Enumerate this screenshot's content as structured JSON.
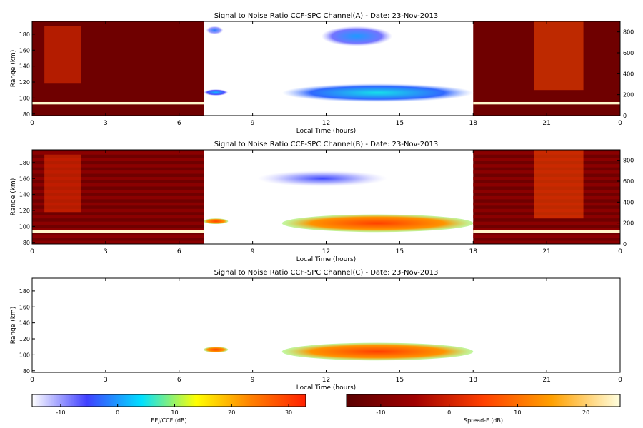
{
  "chart_data": [
    {
      "type": "heatmap",
      "title": "Signal to Noise Ratio CCF-SPC Channel(A) - Date: 23-Nov-2013",
      "xlabel": "Local Time (hours)",
      "ylabel": "Range (km)",
      "xlim": [
        0,
        24
      ],
      "ylim": [
        78,
        196
      ],
      "x_ticks": [
        "0",
        "3",
        "6",
        "9",
        "12",
        "15",
        "18",
        "21",
        "0"
      ],
      "y_ticks": [
        80,
        100,
        120,
        140,
        160,
        180
      ],
      "y2lim": [
        0,
        900
      ],
      "y2_ticks": [
        0,
        200,
        400,
        600,
        800
      ],
      "night_background": "spread-f",
      "features": [
        {
          "scale": "spread-f",
          "x": [
            0,
            7
          ],
          "y": [
            92,
            95
          ],
          "value": 24
        },
        {
          "scale": "spread-f",
          "x": [
            0.5,
            2
          ],
          "y": [
            118,
            190
          ],
          "value": 3
        },
        {
          "scale": "spread-f",
          "x": [
            18,
            24
          ],
          "y": [
            92,
            95
          ],
          "value": 24
        },
        {
          "scale": "spread-f",
          "x": [
            20.5,
            22.5
          ],
          "y": [
            110,
            196
          ],
          "value": 6
        },
        {
          "scale": "eej",
          "x": [
            7.1,
            7.8
          ],
          "y": [
            180,
            190
          ],
          "value": -2
        },
        {
          "scale": "eej",
          "x": [
            7.0,
            8.0
          ],
          "y": [
            103,
            111
          ],
          "value": 2
        },
        {
          "scale": "eej",
          "x": [
            11.8,
            14.7
          ],
          "y": [
            165,
            190
          ],
          "value": 0
        },
        {
          "scale": "eej",
          "x": [
            10.2,
            18
          ],
          "y": [
            95,
            118
          ],
          "value": 5
        }
      ]
    },
    {
      "type": "heatmap",
      "title": "Signal to Noise Ratio CCF-SPC Channel(B) - Date: 23-Nov-2013",
      "xlabel": "Local Time (hours)",
      "ylabel": "Range (km)",
      "xlim": [
        0,
        24
      ],
      "ylim": [
        78,
        196
      ],
      "x_ticks": [
        "0",
        "3",
        "6",
        "9",
        "12",
        "15",
        "18",
        "21",
        "0"
      ],
      "y_ticks": [
        80,
        100,
        120,
        140,
        160,
        180
      ],
      "y2lim": [
        0,
        900
      ],
      "y2_ticks": [
        0,
        200,
        400,
        600,
        800
      ],
      "night_background": "spread-f-striped",
      "features": [
        {
          "scale": "spread-f",
          "x": [
            0,
            7
          ],
          "y": [
            92,
            95
          ],
          "value": 24
        },
        {
          "scale": "spread-f",
          "x": [
            0.5,
            2
          ],
          "y": [
            118,
            190
          ],
          "value": 3
        },
        {
          "scale": "spread-f",
          "x": [
            18,
            24
          ],
          "y": [
            92,
            95
          ],
          "value": 24
        },
        {
          "scale": "spread-f",
          "x": [
            20.5,
            22.5
          ],
          "y": [
            110,
            196
          ],
          "value": 6
        },
        {
          "scale": "eej",
          "x": [
            7.0,
            8.0
          ],
          "y": [
            103,
            110
          ],
          "value": 30
        },
        {
          "scale": "eej",
          "x": [
            10.2,
            18
          ],
          "y": [
            93,
            115
          ],
          "value": 30
        },
        {
          "scale": "eej",
          "x": [
            9.2,
            14.5
          ],
          "y": [
            150,
            170
          ],
          "value": -5
        }
      ]
    },
    {
      "type": "heatmap",
      "title": "Signal to Noise Ratio CCF-SPC Channel(C) - Date: 23-Nov-2013",
      "xlabel": "Local Time (hours)",
      "ylabel": "Range (km)",
      "xlim": [
        0,
        24
      ],
      "ylim": [
        78,
        196
      ],
      "x_ticks": [
        "0",
        "3",
        "6",
        "9",
        "12",
        "15",
        "18",
        "21",
        "0"
      ],
      "y_ticks": [
        80,
        100,
        120,
        140,
        160,
        180
      ],
      "night_background": "none",
      "features": [
        {
          "scale": "eej",
          "x": [
            7.0,
            8.0
          ],
          "y": [
            103,
            110
          ],
          "value": 30
        },
        {
          "scale": "eej",
          "x": [
            10.2,
            18
          ],
          "y": [
            93,
            115
          ],
          "value": 30
        }
      ]
    }
  ],
  "colorbars": [
    {
      "label": "EEJ/CCF (dB)",
      "range": [
        -15,
        33
      ],
      "ticks": [
        -10,
        0,
        10,
        20,
        30
      ],
      "colors": [
        "#ffffff",
        "#4040ff",
        "#00e0ff",
        "#ffff00",
        "#ff8000",
        "#ff2000"
      ]
    },
    {
      "label": "Spread-F (dB)",
      "range": [
        -15,
        25
      ],
      "ticks": [
        -10,
        0,
        10,
        20
      ],
      "colors": [
        "#5a0000",
        "#a00000",
        "#ff4000",
        "#ffa000",
        "#ffffe0"
      ]
    }
  ]
}
